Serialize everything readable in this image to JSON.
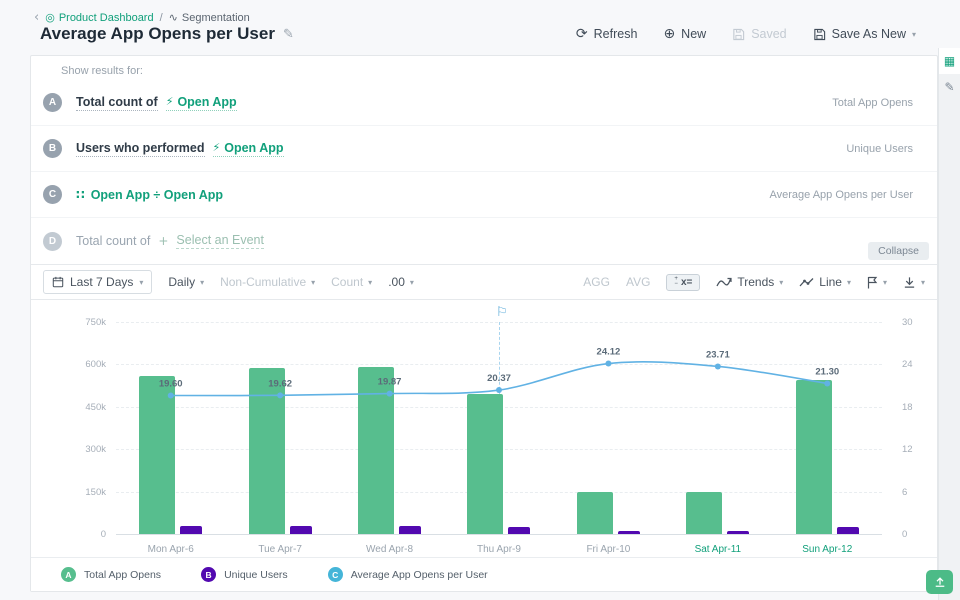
{
  "accent_color": "#11A07B",
  "breadcrumb": {
    "dashboard": "Product Dashboard",
    "separator": "/",
    "current": "Segmentation"
  },
  "header": {
    "title": "Average App Opens per User",
    "refresh_label": "Refresh",
    "new_label": "New",
    "saved_label": "Saved",
    "save_as_new_label": "Save As New"
  },
  "panel": {
    "show_results_label": "Show results for:",
    "rows": [
      {
        "badge": "A",
        "prefix": "Total count of",
        "event": "Open App",
        "metric": "Total App Opens"
      },
      {
        "badge": "B",
        "prefix": "Users who performed",
        "event": "Open App",
        "metric": "Unique Users"
      },
      {
        "badge": "C",
        "formula": "Open App ÷ Open App",
        "metric": "Average App Opens per User"
      },
      {
        "badge": "D",
        "prefix": "Total count of",
        "placeholder": "Select an Event"
      }
    ],
    "collapse_label": "Collapse"
  },
  "toolbar": {
    "date_range": "Last 7 Days",
    "interval": "Daily",
    "accumulation": "Non-Cumulative",
    "measure": "Count",
    "decimals": ".00",
    "agg_label": "AGG",
    "avg_label": "AVG",
    "trends_label": "Trends",
    "chart_type_label": "Line"
  },
  "chart_data": {
    "type": "combo",
    "categories": [
      "Mon Apr-6",
      "Tue Apr-7",
      "Wed Apr-8",
      "Thu Apr-9",
      "Fri Apr-10",
      "Sat Apr-11",
      "Sun Apr-12"
    ],
    "weekend_categories": [
      "Sat Apr-11",
      "Sun Apr-12"
    ],
    "series": [
      {
        "name": "Total App Opens",
        "type": "bar",
        "axis": "left",
        "color": "#57BE8E",
        "values": [
          558000,
          586000,
          591000,
          496000,
          150000,
          150000,
          546000
        ]
      },
      {
        "name": "Unique Users",
        "type": "bar",
        "axis": "left",
        "color": "#5209B0",
        "values": [
          28500,
          29900,
          29800,
          24400,
          6200,
          6300,
          25600
        ]
      },
      {
        "name": "Average App Opens per User",
        "type": "line",
        "axis": "right",
        "color": "#61B2E4",
        "values": [
          19.6,
          19.62,
          19.87,
          20.37,
          24.12,
          23.71,
          21.3
        ]
      }
    ],
    "left_axis": {
      "max": 750000,
      "ticks": [
        "750k",
        "600k",
        "450k",
        "300k",
        "150k",
        "0"
      ]
    },
    "right_axis": {
      "max": 30,
      "ticks": [
        "30",
        "24",
        "18",
        "12",
        "6",
        "0"
      ]
    },
    "annotation": {
      "category": "Thu Apr-9",
      "type": "flag"
    },
    "grid": true,
    "legend_position": "bottom"
  },
  "legend": [
    {
      "badge": "A",
      "label": "Total App Opens",
      "color": "#57BE8E"
    },
    {
      "badge": "B",
      "label": "Unique Users",
      "color": "#5209B0"
    },
    {
      "badge": "C",
      "label": "Average App Opens per User",
      "color": "#45B5D8"
    }
  ]
}
